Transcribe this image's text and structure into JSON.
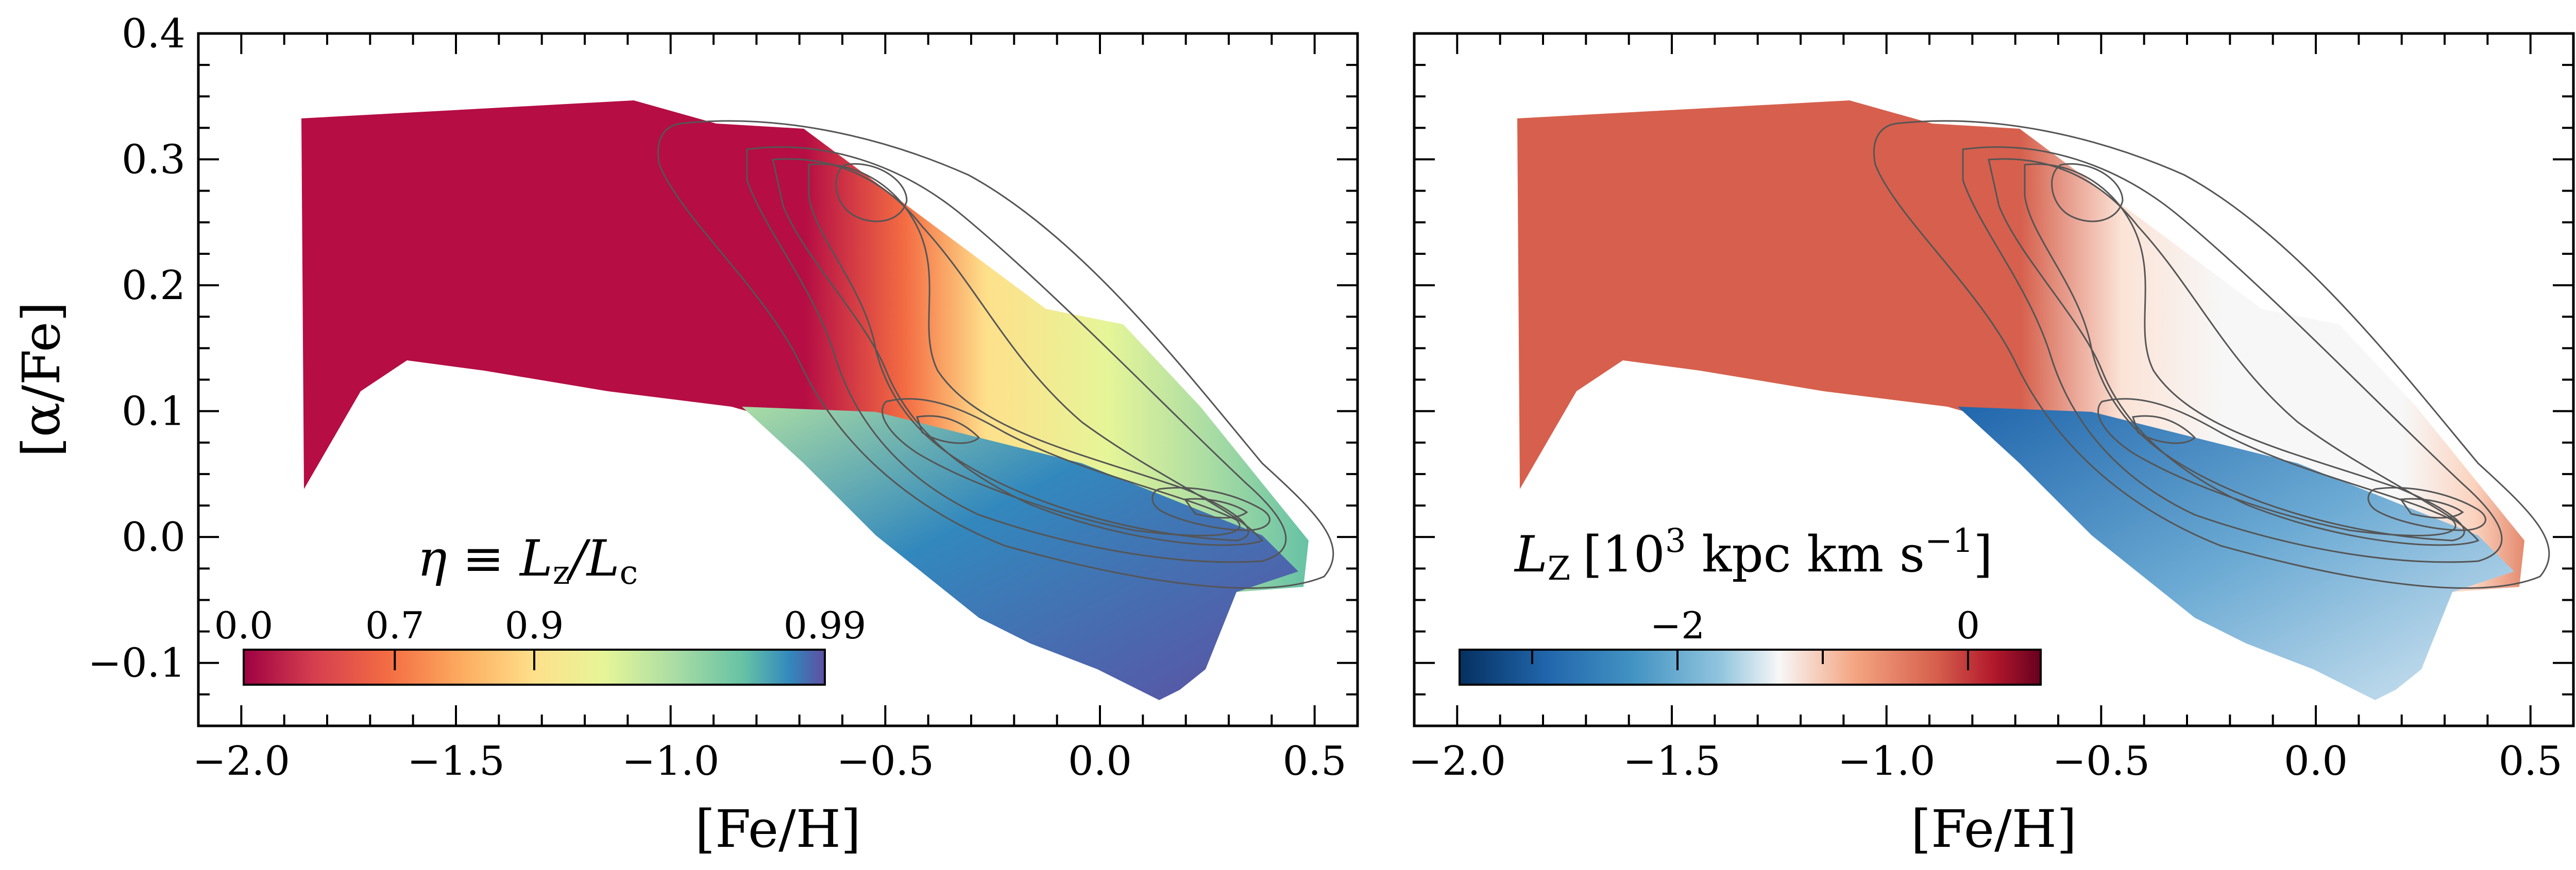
{
  "chart_data": [
    {
      "type": "heatmap",
      "panel": "left",
      "xlabel": "[Fe/H]",
      "ylabel": "[α/Fe]",
      "xlim": [
        -2.1,
        0.6
      ],
      "ylim": [
        -0.15,
        0.4
      ],
      "xticks": [
        -2.0,
        -1.5,
        -1.0,
        -0.5,
        0.0,
        0.5
      ],
      "xtick_labels": [
        "−2.0",
        "−1.5",
        "−1.0",
        "−0.5",
        "0.0",
        "0.5"
      ],
      "yticks": [
        -0.1,
        0.0,
        0.1,
        0.2,
        0.3,
        0.4
      ],
      "ytick_labels": [
        "−0.1",
        "0.0",
        "0.1",
        "0.2",
        "0.3",
        "0.4"
      ],
      "colorbar": {
        "title_main": "η ≡ L",
        "title_sub": "z",
        "title_mid": "/L",
        "title_sub2": "c",
        "colormap": "Spectral",
        "tick_values": [
          0.0,
          0.7,
          0.9,
          0.99
        ],
        "tick_labels": [
          "0.0",
          "0.7",
          "0.9",
          "0.99"
        ],
        "orientation": "horizontal",
        "placement": "lower-left inside plot"
      },
      "contours": "density contours (grey lines) overlaid",
      "regions": [
        {
          "feh_range": [
            -1.9,
            -0.85
          ],
          "afe_range": [
            0.05,
            0.35
          ],
          "value_approx": 0.0
        },
        {
          "feh_range": [
            -0.9,
            -0.6
          ],
          "afe_range": [
            0.1,
            0.33
          ],
          "value_approx": 0.7
        },
        {
          "feh_range": [
            -0.6,
            0.2
          ],
          "afe_range": [
            0.1,
            0.3
          ],
          "value_approx": 0.9
        },
        {
          "feh_range": [
            -0.4,
            0.5
          ],
          "afe_range": [
            -0.12,
            0.05
          ],
          "value_approx": 0.99
        }
      ]
    },
    {
      "type": "heatmap",
      "panel": "right",
      "xlabel": "[Fe/H]",
      "ylabel": "",
      "xlim": [
        -2.1,
        0.6
      ],
      "ylim": [
        -0.15,
        0.4
      ],
      "xticks": [
        -2.0,
        -1.5,
        -1.0,
        -0.5,
        0.0,
        0.5
      ],
      "xtick_labels": [
        "−2.0",
        "−1.5",
        "−1.0",
        "−0.5",
        "0.0",
        "0.5"
      ],
      "colorbar": {
        "title_main": "L",
        "title_sub": "Z",
        "title_unit": "[10",
        "title_exp": "3",
        "title_unit2": " kpc km s",
        "title_exp2": "−1",
        "title_close": "]",
        "colormap": "RdBu_r",
        "tick_values": [
          -2,
          0
        ],
        "tick_labels": [
          "−2",
          "0"
        ],
        "range": [
          -3.5,
          0.5
        ],
        "orientation": "horizontal",
        "placement": "lower-left inside plot"
      },
      "contours": "density contours (grey lines) overlaid",
      "colors": {
        "prograde": "#2166ac",
        "retrograde": "#d6604d",
        "zero": "#f7f7f7"
      }
    }
  ]
}
